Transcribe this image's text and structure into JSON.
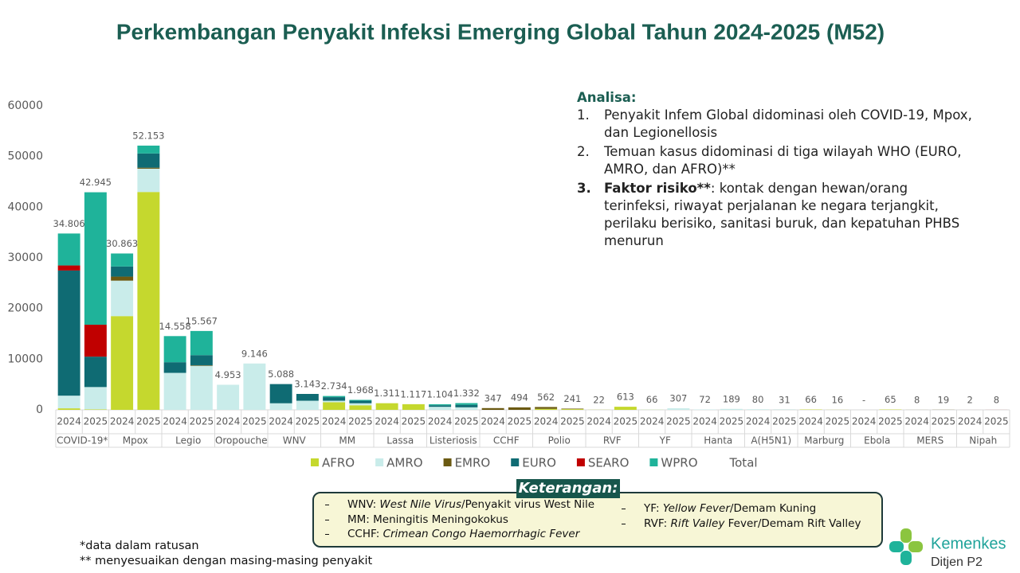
{
  "chart_data": {
    "type": "stacked_bar",
    "title": "Perkembangan Penyakit Infeksi Emerging Global Tahun 2024-2025 (M52)",
    "categories": [
      "2024",
      "2025",
      "2024",
      "2025",
      "2024",
      "2025",
      "2024",
      "2025",
      "2024",
      "2025",
      "2024",
      "2025",
      "2024",
      "2025",
      "2024",
      "2025",
      "2024",
      "2025",
      "2024",
      "2025",
      "2024",
      "2025",
      "2024",
      "2025",
      "2024",
      "2025",
      "2024",
      "2025",
      "2024",
      "2025",
      "2024",
      "2025",
      "2024",
      "2025",
      "2024",
      "2025"
    ],
    "groups": [
      "COVID-19*",
      "Mpox",
      "Legio",
      "Oropouche",
      "WNV",
      "MM",
      "Lassa",
      "Listeriosis",
      "CCHF",
      "Polio",
      "RVF",
      "YF",
      "Hanta",
      "A(H5N1)",
      "Marburg",
      "Ebola",
      "MERS",
      "Nipah"
    ],
    "series": [
      {
        "name": "AFRO",
        "color": "#c5d82e",
        "values": [
          300,
          100,
          18500,
          43000,
          0,
          0,
          0,
          0,
          0,
          0,
          1500,
          900,
          1311,
          1117,
          0,
          0,
          0,
          0,
          200,
          141,
          22,
          613,
          30,
          0,
          0,
          0,
          0,
          0,
          66,
          16,
          0,
          65,
          0,
          0,
          0,
          0
        ]
      },
      {
        "name": "AMRO",
        "color": "#c9ecea",
        "values": [
          2500,
          4400,
          7000,
          4600,
          7300,
          8700,
          4953,
          9146,
          1300,
          1800,
          300,
          400,
          0,
          0,
          600,
          500,
          0,
          0,
          0,
          0,
          0,
          0,
          36,
          307,
          72,
          189,
          70,
          20,
          0,
          0,
          0,
          0,
          0,
          0,
          0,
          0
        ]
      },
      {
        "name": "EMRO",
        "color": "#6b5a12",
        "values": [
          0,
          0,
          800,
          200,
          0,
          100,
          0,
          0,
          0,
          0,
          0,
          0,
          0,
          0,
          0,
          0,
          347,
          494,
          362,
          100,
          0,
          0,
          0,
          0,
          0,
          0,
          0,
          0,
          0,
          0,
          0,
          0,
          8,
          19,
          0,
          0
        ]
      },
      {
        "name": "EURO",
        "color": "#0f6b73",
        "values": [
          24700,
          6000,
          2000,
          2800,
          2100,
          2000,
          0,
          0,
          3788,
          1343,
          700,
          500,
          0,
          0,
          300,
          500,
          0,
          0,
          0,
          0,
          0,
          0,
          0,
          0,
          0,
          0,
          0,
          0,
          0,
          0,
          0,
          0,
          0,
          0,
          0,
          0
        ]
      },
      {
        "name": "SEARO",
        "color": "#c00000",
        "values": [
          1000,
          6300,
          0,
          0,
          0,
          0,
          0,
          0,
          0,
          0,
          0,
          0,
          0,
          0,
          0,
          0,
          0,
          0,
          0,
          0,
          0,
          0,
          0,
          0,
          0,
          0,
          0,
          0,
          0,
          0,
          0,
          0,
          0,
          0,
          2,
          8
        ]
      },
      {
        "name": "WPRO",
        "color": "#1fb39a",
        "values": [
          6306,
          26145,
          2563,
          1553,
          5158,
          4767,
          0,
          0,
          0,
          0,
          234,
          168,
          0,
          0,
          204,
          332,
          0,
          0,
          0,
          0,
          0,
          0,
          0,
          0,
          0,
          0,
          10,
          11,
          0,
          0,
          0,
          0,
          0,
          0,
          0,
          0
        ]
      }
    ],
    "totals": {
      "name": "Total",
      "values": [
        34806,
        42945,
        30863,
        52153,
        14558,
        15567,
        4953,
        9146,
        5088,
        3143,
        2734,
        1968,
        1311,
        1117,
        1104,
        1332,
        347,
        494,
        562,
        241,
        22,
        613,
        66,
        307,
        72,
        189,
        80,
        31,
        66,
        16,
        null,
        65,
        8,
        19,
        2,
        8
      ],
      "value_labels": [
        "34.806",
        "42.945",
        "30.863",
        "52.153",
        "14.558",
        "15.567",
        "4.953",
        "9.146",
        "5.088",
        "3.143",
        "2.734",
        "1.968",
        "1.311",
        "1.117",
        "1.104",
        "1.332",
        "347",
        "494",
        "562",
        "241",
        "22",
        "613",
        "66",
        "307",
        "72",
        "189",
        "80",
        "31",
        "66",
        "16",
        "-",
        "65",
        "8",
        "19",
        "2",
        "8"
      ]
    },
    "ylim": [
      0,
      60000
    ],
    "yticks": [
      0,
      10000,
      20000,
      30000,
      40000,
      50000,
      60000
    ],
    "grid": false
  },
  "analysis": {
    "heading": "Analisa:",
    "items": [
      {
        "number": "1.",
        "text": "Penyakit Infem Global didominasi oleh COVID-19, Mpox, dan Legionellosis"
      },
      {
        "number": "2.",
        "text": "Temuan kasus didominasi di tiga wilayah WHO (EURO, AMRO, dan AFRO)**"
      },
      {
        "number": "3.",
        "bold": "Faktor risiko**",
        "text": ": kontak dengan hewan/orang terinfeksi, riwayat perjalanan ke negara terjangkit, perilaku berisiko, sanitasi buruk, dan kepatuhan PHBS menurun"
      }
    ]
  },
  "legend_notes": {
    "title": "Keterangan:",
    "left": [
      [
        {
          "text": "WNV: "
        },
        {
          "text": "West Nile Virus",
          "italic": true
        },
        {
          "text": "/Penyakit virus West Nile"
        }
      ],
      [
        {
          "text": "MM: Meningitis Meningokokus"
        }
      ],
      [
        {
          "text": "CCHF: "
        },
        {
          "text": "Crimean Congo Haemorrhagic Fever",
          "italic": true
        }
      ]
    ],
    "right": [
      [
        {
          "text": "YF: "
        },
        {
          "text": "Yellow Fever",
          "italic": true
        },
        {
          "text": "/Demam Kuning"
        }
      ],
      [
        {
          "text": "RVF: "
        },
        {
          "text": "Rift Valley",
          "italic": true
        },
        {
          "text": " Fever/Demam Rift Valley"
        }
      ]
    ]
  },
  "footnotes": [
    "*data dalam ratusan",
    "** menyesuaikan dengan masing-masing penyakit"
  ],
  "logo": {
    "name": "Kemenkes",
    "unit": "Ditjen P2"
  }
}
